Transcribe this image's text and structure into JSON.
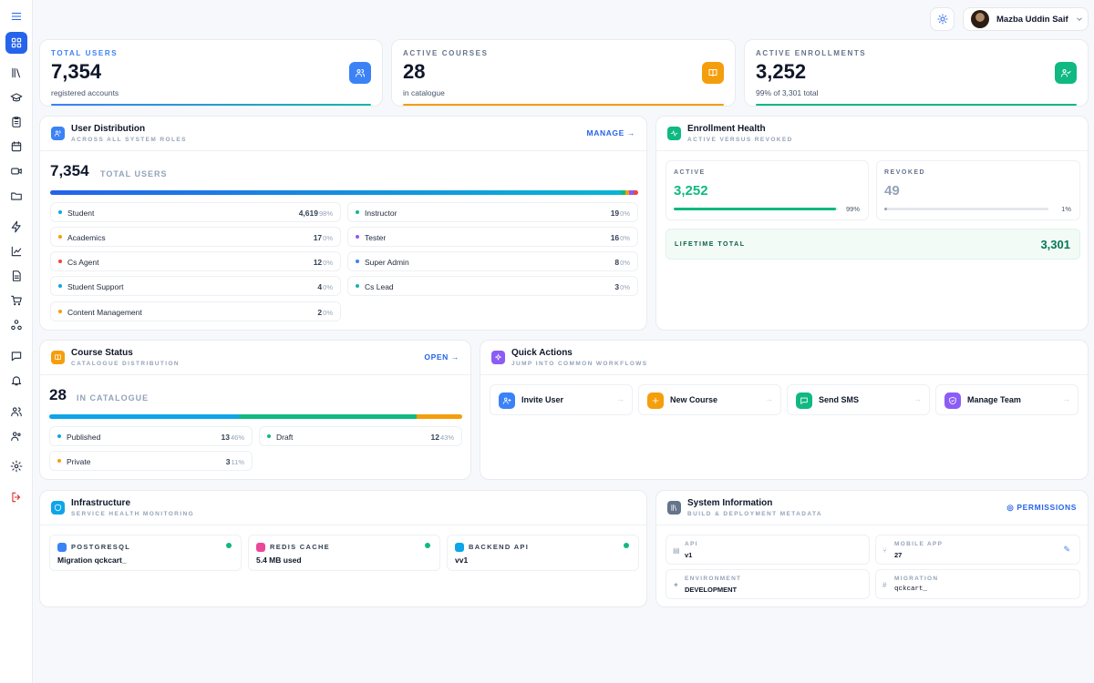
{
  "user": {
    "name": "Mazba Uddin Saif"
  },
  "stats": [
    {
      "label": "TOTAL USERS",
      "value": "7,354",
      "sub": "registered accounts",
      "icon": "users-icon",
      "color": "#3b82f6"
    },
    {
      "label": "ACTIVE COURSES",
      "value": "28",
      "sub": "in catalogue",
      "icon": "book-icon",
      "color": "#f59e0b"
    },
    {
      "label": "ACTIVE ENROLLMENTS",
      "value": "3,252",
      "sub": "99% of 3,301 total",
      "icon": "user-check-icon",
      "color": "#10b981"
    }
  ],
  "user_distribution": {
    "title": "User Distribution",
    "subtitle": "ACROSS ALL SYSTEM ROLES",
    "link": "MANAGE",
    "total": "7,354",
    "total_label": "TOTAL USERS",
    "roles": [
      {
        "label": "Student",
        "value": "4,619",
        "pct": "98%",
        "color": "#0ea5e9"
      },
      {
        "label": "Instructor",
        "value": "19",
        "pct": "0%",
        "color": "#10b981"
      },
      {
        "label": "Academics",
        "value": "17",
        "pct": "0%",
        "color": "#f59e0b"
      },
      {
        "label": "Tester",
        "value": "16",
        "pct": "0%",
        "color": "#8b5cf6"
      },
      {
        "label": "Cs Agent",
        "value": "12",
        "pct": "0%",
        "color": "#ef4444"
      },
      {
        "label": "Super Admin",
        "value": "8",
        "pct": "0%",
        "color": "#3b82f6"
      },
      {
        "label": "Student Support",
        "value": "4",
        "pct": "0%",
        "color": "#0ea5e9"
      },
      {
        "label": "Cs Lead",
        "value": "3",
        "pct": "0%",
        "color": "#14b8a6"
      },
      {
        "label": "Content Management",
        "value": "2",
        "pct": "0%",
        "color": "#f59e0b"
      }
    ]
  },
  "enrollment_health": {
    "title": "Enrollment Health",
    "subtitle": "ACTIVE VERSUS REVOKED",
    "active_label": "ACTIVE",
    "active_value": "3,252",
    "active_pct": "99%",
    "active_fraction": 0.99,
    "revoked_label": "REVOKED",
    "revoked_value": "49",
    "revoked_pct": "1%",
    "revoked_fraction": 0.01,
    "lifetime_label": "LIFETIME TOTAL",
    "lifetime_value": "3,301"
  },
  "course_status": {
    "title": "Course Status",
    "subtitle": "CATALOGUE DISTRIBUTION",
    "link": "OPEN",
    "total": "28",
    "total_label": "IN CATALOGUE",
    "items": [
      {
        "label": "Published",
        "value": "13",
        "pct": "46%",
        "color": "#0ea5e9",
        "fraction": 0.46
      },
      {
        "label": "Draft",
        "value": "12",
        "pct": "43%",
        "color": "#10b981",
        "fraction": 0.43
      },
      {
        "label": "Private",
        "value": "3",
        "pct": "11%",
        "color": "#f59e0b",
        "fraction": 0.11
      }
    ]
  },
  "quick_actions": {
    "title": "Quick Actions",
    "subtitle": "JUMP INTO COMMON WORKFLOWS",
    "items": [
      {
        "label": "Invite User",
        "icon": "user-plus-icon",
        "color": "#3b82f6"
      },
      {
        "label": "New Course",
        "icon": "plus-icon",
        "color": "#f59e0b"
      },
      {
        "label": "Send SMS",
        "icon": "message-icon",
        "color": "#10b981"
      },
      {
        "label": "Manage Team",
        "icon": "shield-icon",
        "color": "#8b5cf6"
      }
    ]
  },
  "infrastructure": {
    "title": "Infrastructure",
    "subtitle": "SERVICE HEALTH MONITORING",
    "services": [
      {
        "name": "POSTGRESQL",
        "value": "Migration qckcart_",
        "color": "#3b82f6"
      },
      {
        "name": "REDIS CACHE",
        "value": "5.4 MB used",
        "color": "#ec4899"
      },
      {
        "name": "BACKEND API",
        "value": "vv1",
        "color": "#0ea5e9"
      }
    ]
  },
  "system_info": {
    "title": "System Information",
    "subtitle": "BUILD & DEPLOYMENT METADATA",
    "link": "PERMISSIONS",
    "items": [
      {
        "label": "API",
        "value": "v1",
        "icon": "server-icon"
      },
      {
        "label": "MOBILE APP",
        "value": "27",
        "icon": "branch-icon"
      },
      {
        "label": "ENVIRONMENT",
        "value": "DEVELOPMENT",
        "icon": "sparkle-icon"
      },
      {
        "label": "MIGRATION",
        "value": "qckcart_",
        "icon": "hash-icon"
      }
    ]
  },
  "sidebar_icons": [
    "menu-icon",
    "dashboard-icon",
    "library-icon",
    "graduation-cap-icon",
    "clipboard-icon",
    "calendar-icon",
    "video-icon",
    "folder-icon",
    "zap-icon",
    "chart-icon",
    "file-text-icon",
    "cart-icon",
    "network-icon",
    "chat-icon",
    "bell-icon",
    "users-icon",
    "user-group-icon",
    "settings-icon",
    "logout-icon"
  ]
}
